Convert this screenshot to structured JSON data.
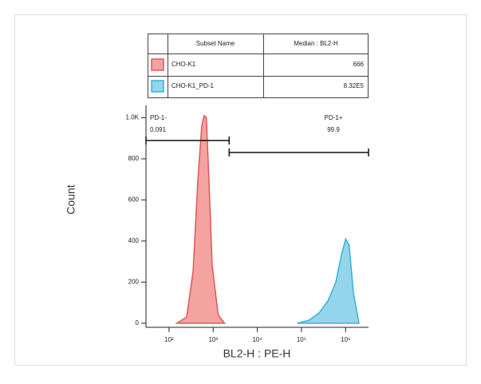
{
  "chart_data": {
    "type": "histogram-overlay",
    "x_label": "BL2-H : PE-H",
    "y_label": "Count",
    "x_log": true,
    "xlim": [
      30,
      3300000
    ],
    "ylim": [
      -20,
      1060
    ],
    "xticks": [
      {
        "value": 100,
        "label": "10²"
      },
      {
        "value": 1000,
        "label": "10³"
      },
      {
        "value": 10000,
        "label": "10⁴"
      },
      {
        "value": 100000,
        "label": "10⁵"
      },
      {
        "value": 1000000,
        "label": "10⁶"
      }
    ],
    "yticks": [
      0,
      200,
      400,
      600,
      800,
      {
        "value": 1000,
        "label": "1.0K"
      }
    ],
    "series": [
      {
        "name": "CHO-K1",
        "color": "#e0575a",
        "fill": "#f4a3a0",
        "median": "666",
        "x": [
          150,
          250,
          350,
          450,
          550,
          620,
          700,
          800,
          950,
          1300,
          1800
        ],
        "values": [
          0,
          30,
          250,
          700,
          960,
          1010,
          1000,
          700,
          280,
          40,
          0
        ]
      },
      {
        "name": "CHO-K1_PD-1",
        "color": "#38b2d4",
        "fill": "#93d6ec",
        "median": "8.32E5",
        "x": [
          80000,
          150000,
          250000,
          400000,
          600000,
          800000,
          1000000,
          1200000,
          1500000,
          2000000
        ],
        "values": [
          0,
          15,
          50,
          110,
          200,
          330,
          410,
          380,
          150,
          0
        ]
      }
    ],
    "table_header": [
      "Subset Name",
      "Median : BL2-H"
    ],
    "gates": [
      {
        "name": "PD-1-",
        "value": 0.091,
        "range": [
          30,
          2300
        ]
      },
      {
        "name": "PD-1+",
        "value": 99.9,
        "range": [
          2300,
          3300000
        ]
      }
    ]
  }
}
